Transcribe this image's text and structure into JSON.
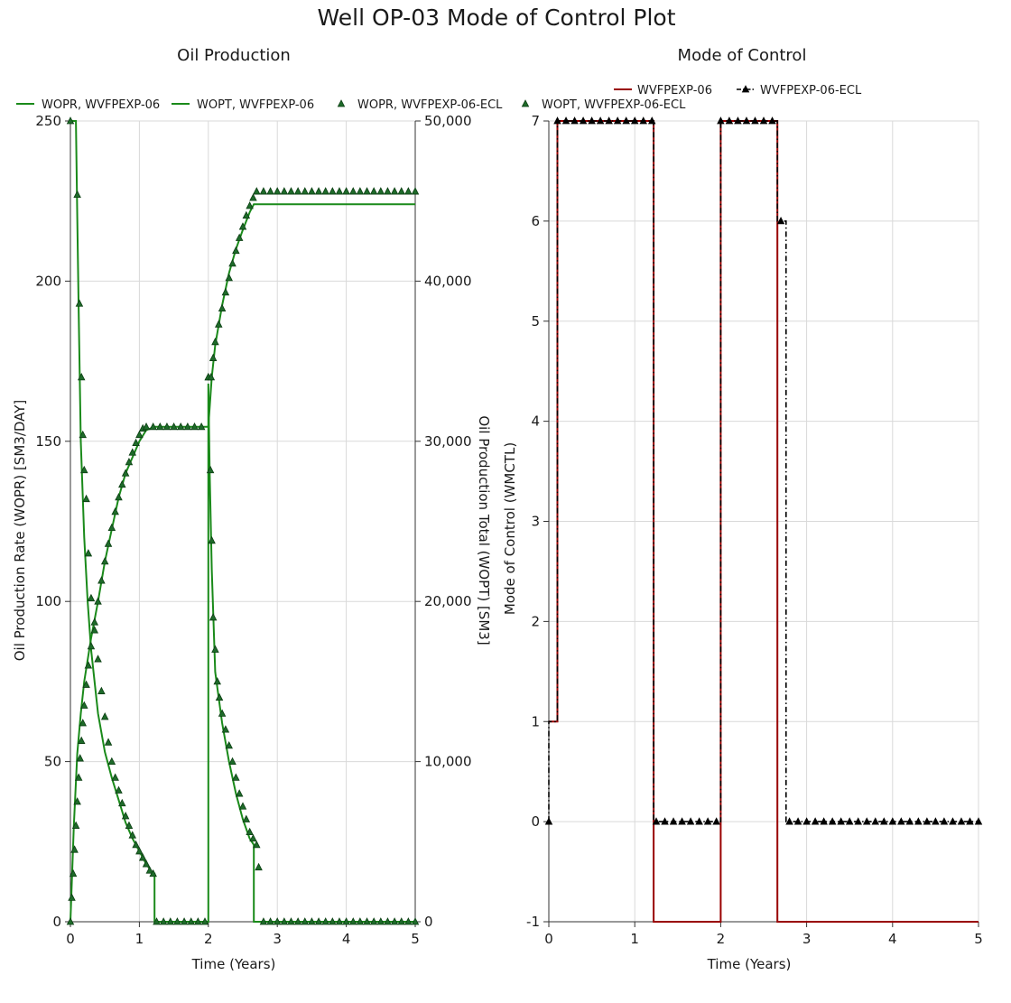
{
  "title": "Well OP-03 Mode of Control Plot",
  "colors": {
    "green": "#1a8a1a",
    "marker_fill": "#1e6b2a",
    "marker_stroke": "#0b3d12",
    "red": "#990000",
    "black": "#000000"
  },
  "chart_data": [
    {
      "type": "line",
      "title": "Oil Production",
      "xlabel": "Time (Years)",
      "ylabel": "Oil Production Rate (WOPR) [SM3/DAY]",
      "y2label": "Oil Production Total (WOPT) [SM3]",
      "xlim": [
        0,
        5
      ],
      "ylim": [
        0,
        250
      ],
      "y2lim": [
        0,
        50000
      ],
      "xticks": [
        "0",
        "1",
        "2",
        "3",
        "4",
        "5"
      ],
      "yticks": [
        "0",
        "50",
        "100",
        "150",
        "200",
        "250"
      ],
      "y2ticks": [
        "0",
        "10,000",
        "20,000",
        "30,000",
        "40,000",
        "50,000"
      ],
      "grid": true,
      "legend": [
        {
          "name": "WOPR, WVFPEXP-06",
          "style": "line"
        },
        {
          "name": "WOPT, WVFPEXP-06",
          "style": "line"
        },
        {
          "name": "WOPR, WVFPEXP-06-ECL",
          "style": "marker"
        },
        {
          "name": "WOPT, WVFPEXP-06-ECL",
          "style": "marker"
        }
      ],
      "series": [
        {
          "name": "WOPR, WVFPEXP-06",
          "axis": "left",
          "style": "line",
          "x": [
            0,
            0.08,
            0.08,
            0.1,
            0.12,
            0.15,
            0.2,
            0.25,
            0.3,
            0.4,
            0.5,
            0.6,
            0.7,
            0.8,
            0.9,
            1.0,
            1.1,
            1.2,
            1.22,
            1.22,
            2.0,
            2.0,
            2.02,
            2.05,
            2.1,
            2.2,
            2.3,
            2.4,
            2.5,
            2.6,
            2.66,
            2.66,
            5
          ],
          "y": [
            250,
            250,
            250,
            220,
            190,
            150,
            120,
            100,
            85,
            65,
            53,
            45,
            38,
            31,
            26,
            22,
            18,
            15,
            15,
            0,
            0,
            168,
            140,
            110,
            78,
            62,
            50,
            40,
            32,
            26,
            24,
            0,
            0
          ]
        },
        {
          "name": "WOPT, WVFPEXP-06",
          "axis": "right",
          "style": "line",
          "x": [
            0,
            0.05,
            0.1,
            0.15,
            0.2,
            0.3,
            0.4,
            0.5,
            0.6,
            0.7,
            0.8,
            0.9,
            1.0,
            1.1,
            1.22,
            2.0,
            2.05,
            2.1,
            2.2,
            2.3,
            2.4,
            2.5,
            2.6,
            2.66,
            5
          ],
          "y": [
            0,
            6000,
            10500,
            13000,
            15000,
            17700,
            20000,
            22500,
            24500,
            26500,
            28000,
            29000,
            30000,
            30700,
            30900,
            30900,
            34000,
            36000,
            38500,
            40500,
            42000,
            43200,
            44300,
            44800,
            44800
          ]
        },
        {
          "name": "WOPR, WVFPEXP-06-ECL",
          "axis": "left",
          "style": "marker",
          "x": [
            0,
            0.1,
            0.13,
            0.16,
            0.18,
            0.2,
            0.23,
            0.26,
            0.3,
            0.35,
            0.4,
            0.45,
            0.5,
            0.55,
            0.6,
            0.65,
            0.7,
            0.75,
            0.8,
            0.85,
            0.9,
            0.95,
            1.0,
            1.05,
            1.1,
            1.15,
            1.2,
            1.25,
            1.35,
            1.45,
            1.55,
            1.65,
            1.75,
            1.85,
            1.95,
            2.0,
            2.03,
            2.05,
            2.07,
            2.1,
            2.13,
            2.16,
            2.2,
            2.25,
            2.3,
            2.35,
            2.4,
            2.45,
            2.5,
            2.55,
            2.6,
            2.65,
            2.7,
            2.73,
            2.8,
            2.9,
            3.0,
            3.1,
            3.2,
            3.3,
            3.4,
            3.5,
            3.6,
            3.7,
            3.8,
            3.9,
            4.0,
            4.1,
            4.2,
            4.3,
            4.4,
            4.5,
            4.6,
            4.7,
            4.8,
            4.9,
            5.0
          ],
          "y": [
            250,
            227,
            193,
            170,
            152,
            141,
            132,
            115,
            101,
            91,
            82,
            72,
            64,
            56,
            50,
            45,
            41,
            37,
            33,
            30,
            27,
            24,
            22,
            20,
            18,
            16,
            15,
            0,
            0,
            0,
            0,
            0,
            0,
            0,
            0,
            170,
            141,
            119,
            95,
            85,
            75,
            70,
            65,
            60,
            55,
            50,
            45,
            40,
            36,
            32,
            28,
            26,
            24,
            17,
            0,
            0,
            0,
            0,
            0,
            0,
            0,
            0,
            0,
            0,
            0,
            0,
            0,
            0,
            0,
            0,
            0,
            0,
            0,
            0,
            0,
            0,
            0
          ]
        },
        {
          "name": "WOPT, WVFPEXP-06-ECL",
          "axis": "right",
          "style": "marker",
          "x": [
            0,
            0.02,
            0.04,
            0.06,
            0.08,
            0.1,
            0.12,
            0.14,
            0.16,
            0.18,
            0.2,
            0.23,
            0.26,
            0.3,
            0.35,
            0.4,
            0.45,
            0.5,
            0.55,
            0.6,
            0.65,
            0.7,
            0.75,
            0.8,
            0.85,
            0.9,
            0.95,
            1.0,
            1.05,
            1.1,
            1.2,
            1.3,
            1.4,
            1.5,
            1.6,
            1.7,
            1.8,
            1.9,
            2.0,
            2.04,
            2.07,
            2.1,
            2.15,
            2.2,
            2.25,
            2.3,
            2.35,
            2.4,
            2.45,
            2.5,
            2.55,
            2.6,
            2.65,
            2.7,
            2.8,
            2.9,
            3.0,
            3.1,
            3.2,
            3.3,
            3.4,
            3.5,
            3.6,
            3.7,
            3.8,
            3.9,
            4.0,
            4.1,
            4.2,
            4.3,
            4.4,
            4.5,
            4.6,
            4.7,
            4.8,
            4.9,
            5.0
          ],
          "y": [
            0,
            1500,
            3000,
            4500,
            6000,
            7500,
            9000,
            10200,
            11300,
            12400,
            13500,
            14800,
            16000,
            17200,
            18700,
            20000,
            21300,
            22500,
            23600,
            24600,
            25600,
            26500,
            27300,
            28000,
            28700,
            29300,
            29900,
            30400,
            30800,
            30900,
            30900,
            30900,
            30900,
            30900,
            30900,
            30900,
            30900,
            30900,
            34000,
            34000,
            35200,
            36200,
            37300,
            38300,
            39300,
            40200,
            41100,
            41900,
            42700,
            43400,
            44100,
            44700,
            45200,
            45600,
            45600,
            45600,
            45600,
            45600,
            45600,
            45600,
            45600,
            45600,
            45600,
            45600,
            45600,
            45600,
            45600,
            45600,
            45600,
            45600,
            45600,
            45600,
            45600,
            45600,
            45600,
            45600,
            45600
          ]
        }
      ]
    },
    {
      "type": "line",
      "title": "Mode of Control",
      "xlabel": "Time (Years)",
      "ylabel": "Mode of Control (WMCTL)",
      "xlim": [
        0,
        5
      ],
      "ylim": [
        -1,
        7
      ],
      "xticks": [
        "0",
        "1",
        "2",
        "3",
        "4",
        "5"
      ],
      "yticks": [
        "-1",
        "0",
        "1",
        "2",
        "3",
        "4",
        "5",
        "6",
        "7"
      ],
      "grid": true,
      "legend": [
        {
          "name": "WVFPEXP-06",
          "style": "line"
        },
        {
          "name": "WVFPEXP-06-ECL",
          "style": "dashdot-marker"
        }
      ],
      "series": [
        {
          "name": "WVFPEXP-06",
          "style": "step",
          "x": [
            0,
            0.1,
            0.1,
            1.22,
            1.22,
            2.0,
            2.0,
            2.66,
            2.66,
            5.0
          ],
          "y": [
            1,
            1,
            7,
            7,
            -1,
            -1,
            7,
            7,
            -1,
            -1
          ]
        },
        {
          "name": "WVFPEXP-06-ECL",
          "style": "dashdot-marker",
          "x": [
            0,
            0,
            0.1,
            0.1,
            1.22,
            1.22,
            2.0,
            2.0,
            2.66,
            2.66,
            2.76,
            2.76,
            5.0
          ],
          "y": [
            0,
            1,
            1,
            7,
            7,
            0,
            0,
            7,
            7,
            6,
            6,
            0,
            0
          ],
          "markers_x": [
            0,
            0.1,
            0.2,
            0.3,
            0.4,
            0.5,
            0.6,
            0.7,
            0.8,
            0.9,
            1.0,
            1.1,
            1.2,
            1.25,
            1.35,
            1.45,
            1.55,
            1.65,
            1.75,
            1.85,
            1.95,
            2.0,
            2.1,
            2.2,
            2.3,
            2.4,
            2.5,
            2.6,
            2.7,
            2.8,
            2.9,
            3.0,
            3.1,
            3.2,
            3.3,
            3.4,
            3.5,
            3.6,
            3.7,
            3.8,
            3.9,
            4.0,
            4.1,
            4.2,
            4.3,
            4.4,
            4.5,
            4.6,
            4.7,
            4.8,
            4.9,
            5.0
          ],
          "markers_y": [
            0,
            7,
            7,
            7,
            7,
            7,
            7,
            7,
            7,
            7,
            7,
            7,
            7,
            0,
            0,
            0,
            0,
            0,
            0,
            0,
            0,
            7,
            7,
            7,
            7,
            7,
            7,
            7,
            6,
            0,
            0,
            0,
            0,
            0,
            0,
            0,
            0,
            0,
            0,
            0,
            0,
            0,
            0,
            0,
            0,
            0,
            0,
            0,
            0,
            0,
            0,
            0
          ]
        }
      ]
    }
  ]
}
